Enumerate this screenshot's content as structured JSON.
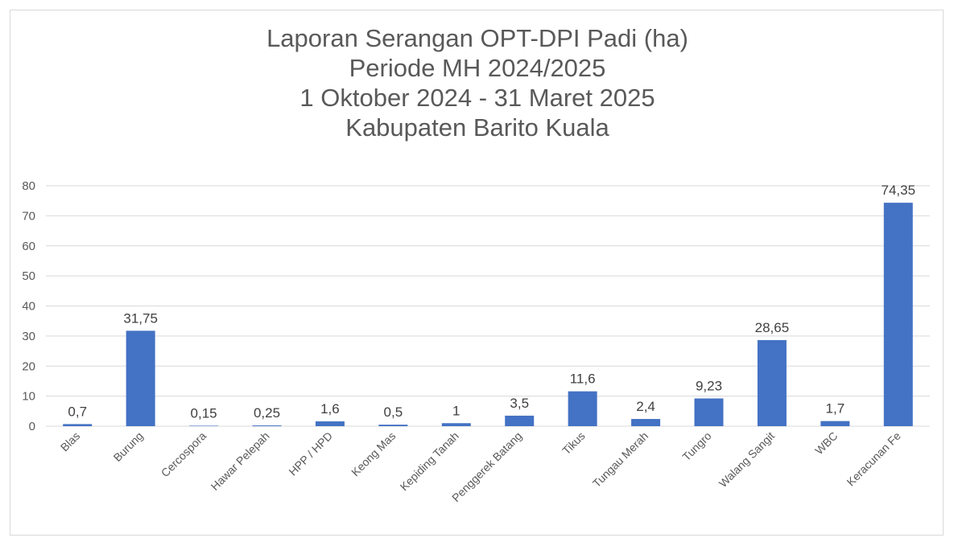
{
  "chart_data": {
    "type": "bar",
    "title_lines": [
      "Laporan Serangan OPT-DPI Padi (ha)",
      "Periode MH 2024/2025",
      "1 Oktober 2024 - 31 Maret 2025",
      "Kabupaten Barito Kuala"
    ],
    "categories": [
      "Blas",
      "Burung",
      "Cercospora",
      "Hawar Pelepah",
      "HPP / HPD",
      "Keong Mas",
      "Kepiding Tanah",
      "Penggerek Batang",
      "Tikus",
      "Tungau Merah",
      "Tungro",
      "Walang Sangit",
      "WBC",
      "Keracunan Fe"
    ],
    "values": [
      0.7,
      31.75,
      0.15,
      0.25,
      1.6,
      0.5,
      1,
      3.5,
      11.6,
      2.4,
      9.23,
      28.65,
      1.7,
      74.35
    ],
    "data_labels": [
      "0,7",
      "31,75",
      "0,15",
      "0,25",
      "1,6",
      "0,5",
      "1",
      "3,5",
      "11,6",
      "2,4",
      "9,23",
      "28,65",
      "1,7",
      "74,35"
    ],
    "yticks": [
      0,
      10,
      20,
      30,
      40,
      50,
      60,
      70,
      80
    ],
    "ylim": [
      0,
      80
    ],
    "xlabel": "",
    "ylabel": "",
    "grid": true,
    "legend": "none",
    "colors": {
      "bar": "#4472c4",
      "grid": "#d9d9d9",
      "text": "#595959"
    }
  }
}
